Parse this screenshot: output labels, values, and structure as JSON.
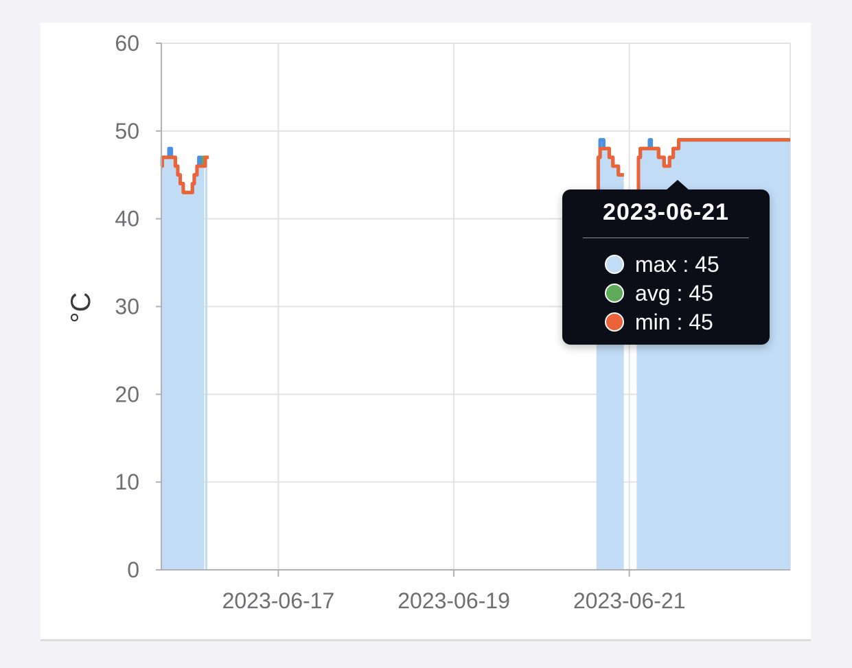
{
  "chart_data": {
    "type": "line",
    "ylabel": "°C",
    "ylim": [
      0,
      60
    ],
    "yticks": [
      "0",
      "10",
      "20",
      "30",
      "40",
      "50",
      "60"
    ],
    "xlim": [
      "2023-06-15T16:00",
      "2023-06-22T20:00"
    ],
    "xticks": [
      {
        "label": "2023-06-17",
        "date": "2023-06-17T00:00"
      },
      {
        "label": "2023-06-19",
        "date": "2023-06-19T00:00"
      },
      {
        "label": "2023-06-21",
        "date": "2023-06-21T00:00"
      }
    ],
    "grid": true,
    "series": [
      {
        "name": "max",
        "color": "#c2dcf6",
        "points": [
          [
            "2023-06-15T16:00",
            46
          ],
          [
            "2023-06-15T16:15",
            47
          ],
          [
            "2023-06-15T18:00",
            47
          ],
          [
            "2023-06-15T18:05",
            48
          ],
          [
            "2023-06-15T18:40",
            48
          ],
          [
            "2023-06-15T18:45",
            47
          ],
          [
            "2023-06-15T19:30",
            47
          ],
          [
            "2023-06-15T19:50",
            46
          ],
          [
            "2023-06-15T20:30",
            45
          ],
          [
            "2023-06-15T21:10",
            44
          ],
          [
            "2023-06-15T22:00",
            43
          ],
          [
            "2023-06-16T00:30",
            44
          ],
          [
            "2023-06-16T01:00",
            45
          ],
          [
            "2023-06-16T01:45",
            46
          ],
          [
            "2023-06-16T02:15",
            47
          ],
          [
            "2023-06-16T02:50",
            46
          ],
          [
            "2023-06-16T03:30",
            47
          ],
          [
            "2023-06-16T03:45",
            47
          ],
          null,
          [
            "2023-06-16T04:00",
            47
          ],
          [
            "2023-06-16T04:35",
            47
          ],
          null,
          [
            "2023-06-20T15:00",
            43
          ],
          [
            "2023-06-20T15:30",
            47
          ],
          [
            "2023-06-20T16:00",
            49
          ],
          [
            "2023-06-20T17:00",
            48
          ],
          [
            "2023-06-20T18:30",
            47
          ],
          [
            "2023-06-20T19:30",
            46
          ],
          [
            "2023-06-20T21:00",
            45
          ],
          [
            "2023-06-20T22:30",
            45
          ],
          null,
          [
            "2023-06-21T02:00",
            43
          ],
          [
            "2023-06-21T02:30",
            47
          ],
          [
            "2023-06-21T03:00",
            48
          ],
          [
            "2023-06-21T05:30",
            49
          ],
          [
            "2023-06-21T06:00",
            48
          ],
          [
            "2023-06-21T08:00",
            47
          ],
          [
            "2023-06-21T09:30",
            46
          ],
          [
            "2023-06-21T11:00",
            47
          ],
          [
            "2023-06-21T12:00",
            48
          ],
          [
            "2023-06-21T13:30",
            49
          ],
          [
            "2023-06-22T20:00",
            49
          ]
        ]
      },
      {
        "name": "avg",
        "color": "#5fab5a",
        "points": [
          [
            "2023-06-15T16:00",
            46
          ],
          [
            "2023-06-15T16:15",
            47
          ],
          [
            "2023-06-15T19:30",
            47
          ],
          [
            "2023-06-15T19:50",
            46
          ],
          [
            "2023-06-15T20:30",
            45
          ],
          [
            "2023-06-15T21:10",
            44
          ],
          [
            "2023-06-15T22:00",
            43
          ],
          [
            "2023-06-16T00:30",
            44
          ],
          [
            "2023-06-16T01:00",
            45
          ],
          [
            "2023-06-16T01:45",
            46
          ],
          [
            "2023-06-16T03:30",
            47
          ],
          [
            "2023-06-16T03:45",
            47
          ],
          null,
          [
            "2023-06-16T04:00",
            47
          ],
          [
            "2023-06-16T04:35",
            47
          ],
          null,
          [
            "2023-06-20T15:00",
            43
          ],
          [
            "2023-06-20T15:30",
            47
          ],
          [
            "2023-06-20T16:00",
            48
          ],
          [
            "2023-06-20T18:30",
            47
          ],
          [
            "2023-06-20T19:30",
            46
          ],
          [
            "2023-06-20T21:00",
            45
          ],
          [
            "2023-06-20T22:30",
            45
          ],
          null,
          [
            "2023-06-21T02:00",
            43
          ],
          [
            "2023-06-21T02:30",
            47
          ],
          [
            "2023-06-21T03:00",
            48
          ],
          [
            "2023-06-21T08:00",
            47
          ],
          [
            "2023-06-21T09:30",
            46
          ],
          [
            "2023-06-21T11:00",
            47
          ],
          [
            "2023-06-21T12:00",
            48
          ],
          [
            "2023-06-21T13:30",
            49
          ],
          [
            "2023-06-22T20:00",
            49
          ]
        ]
      },
      {
        "name": "min",
        "color": "#ec6339",
        "points": [
          [
            "2023-06-15T16:00",
            46
          ],
          [
            "2023-06-15T16:15",
            47
          ],
          [
            "2023-06-15T19:30",
            47
          ],
          [
            "2023-06-15T19:50",
            46
          ],
          [
            "2023-06-15T20:30",
            45
          ],
          [
            "2023-06-15T21:10",
            44
          ],
          [
            "2023-06-15T22:00",
            43
          ],
          [
            "2023-06-16T00:30",
            44
          ],
          [
            "2023-06-16T01:00",
            45
          ],
          [
            "2023-06-16T01:45",
            46
          ],
          [
            "2023-06-16T03:45",
            46
          ],
          [
            "2023-06-16T04:00",
            47
          ],
          [
            "2023-06-16T05:00",
            47
          ],
          null,
          [
            "2023-06-20T15:00",
            43
          ],
          [
            "2023-06-20T15:30",
            47
          ],
          [
            "2023-06-20T16:00",
            48
          ],
          [
            "2023-06-20T18:30",
            47
          ],
          [
            "2023-06-20T19:30",
            46
          ],
          [
            "2023-06-20T21:00",
            45
          ],
          [
            "2023-06-20T22:30",
            45
          ],
          null,
          [
            "2023-06-21T02:00",
            43
          ],
          [
            "2023-06-21T02:30",
            47
          ],
          [
            "2023-06-21T03:00",
            48
          ],
          [
            "2023-06-21T08:00",
            47
          ],
          [
            "2023-06-21T09:30",
            46
          ],
          [
            "2023-06-21T11:00",
            47
          ],
          [
            "2023-06-21T12:00",
            48
          ],
          [
            "2023-06-21T13:30",
            49
          ],
          [
            "2023-06-22T20:00",
            49
          ]
        ]
      }
    ],
    "filled_series": "max",
    "tooltip": {
      "title": "2023-06-21",
      "rows": [
        {
          "label": "max : 45",
          "color": "#c2dcf6"
        },
        {
          "label": "avg : 45",
          "color": "#5fab5a"
        },
        {
          "label": "min : 45",
          "color": "#ec6339"
        }
      ]
    }
  }
}
